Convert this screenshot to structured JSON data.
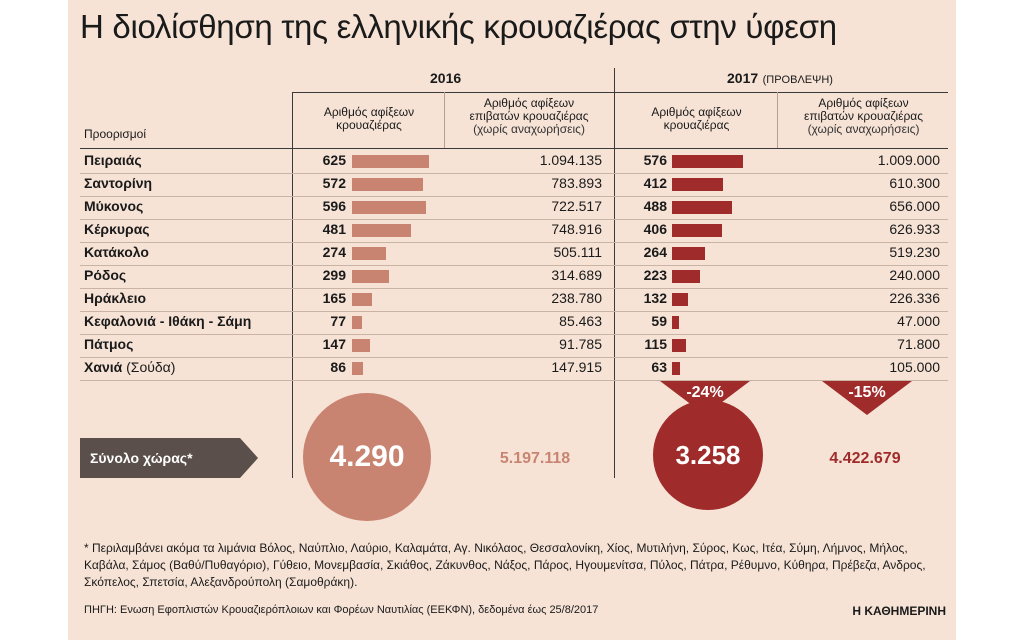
{
  "title": "Η διολίσθηση της ελληνικής κρουαζιέρας στην ύφεση",
  "years": {
    "y2016": "2016",
    "y2017": "2017",
    "y2017_note": "(ΠΡΟΒΛΕΨΗ)"
  },
  "columns": {
    "dest": "Προορισμοί",
    "arrivals_line1": "Αριθμός αφίξεων",
    "arrivals_line2": "κρουαζιέρας",
    "pax_line1": "Αριθμός αφίξεων",
    "pax_line2": "επιβατών κρουαζιέρας",
    "pax_line3": "(χωρίς αναχωρήσεις)"
  },
  "colors": {
    "bar2016": "#c98471",
    "bar2017": "#9f2b2b",
    "circle2016": "#c98471",
    "circle2017": "#9f2b2b",
    "total_label_bg": "#5a4f4a"
  },
  "chart_data": {
    "type": "table",
    "title": "Η διολίσθηση της ελληνικής κρουαζιέρας στην ύφεση",
    "rows": [
      {
        "dest": "Πειραιάς",
        "dest_note": "",
        "a2016": 625,
        "p2016": "1.094.135",
        "a2017": 576,
        "p2017": "1.009.000"
      },
      {
        "dest": "Σαντορίνη",
        "dest_note": "",
        "a2016": 572,
        "p2016": "783.893",
        "a2017": 412,
        "p2017": "610.300"
      },
      {
        "dest": "Μύκονος",
        "dest_note": "",
        "a2016": 596,
        "p2016": "722.517",
        "a2017": 488,
        "p2017": "656.000"
      },
      {
        "dest": "Κέρκυρας",
        "dest_note": "",
        "a2016": 481,
        "p2016": "748.916",
        "a2017": 406,
        "p2017": "626.933"
      },
      {
        "dest": "Κατάκολο",
        "dest_note": "",
        "a2016": 274,
        "p2016": "505.111",
        "a2017": 264,
        "p2017": "519.230"
      },
      {
        "dest": "Ρόδος",
        "dest_note": "",
        "a2016": 299,
        "p2016": "314.689",
        "a2017": 223,
        "p2017": "240.000"
      },
      {
        "dest": "Ηράκλειο",
        "dest_note": "",
        "a2016": 165,
        "p2016": "238.780",
        "a2017": 132,
        "p2017": "226.336"
      },
      {
        "dest": "Κεφαλονιά - Ιθάκη - Σάμη",
        "dest_note": "",
        "a2016": 77,
        "p2016": "85.463",
        "a2017": 59,
        "p2017": "47.000"
      },
      {
        "dest": "Πάτμος",
        "dest_note": "",
        "a2016": 147,
        "p2016": "91.785",
        "a2017": 115,
        "p2017": "71.800"
      },
      {
        "dest": "Χανιά",
        "dest_note": "(Σούδα)",
        "a2016": 86,
        "p2016": "147.915",
        "a2017": 63,
        "p2017": "105.000"
      }
    ],
    "totals": {
      "label": "Σύνολο χώρας*",
      "a2016": "4.290",
      "p2016": "5.197.118",
      "a2017": "3.258",
      "p2017": "4.422.679",
      "change_arrivals": "-24%",
      "change_pax": "-15%"
    }
  },
  "footnote": "* Περιλαμβάνει ακόμα τα λιμάνια Βόλος, Ναύπλιο, Λαύριο, Καλαμάτα, Αγ. Νικόλαος, Θεσσαλονίκη, Χίος, Μυτιλήνη, Σύρος, Κως, Ιτέα, Σύμη, Λήμνος, Μήλος, Καβάλα, Σάμος (Βαθύ/Πυθαγόριο), Γύθειο, Μονεμβασία, Σκιάθος, Ζάκυνθος, Νάξος, Πάρος, Ηγουμενίτσα, Πύλος, Πάτρα, Ρέθυμνο, Κύθηρα, Πρέβεζα, Ανδρος, Σκόπελος, Σπετσία, Αλεξανδρούπολη (Σαμοθράκη).",
  "source": "ΠΗΓΗ: Ενωση Εφοπλιστών Κρουαζιερόπλοιων και Φορέων Ναυτιλίας (ΕΕΚΦΝ), δεδομένα έως 25/8/2017",
  "brand": "Η ΚΑΘΗΜΕΡΙΝΗ"
}
